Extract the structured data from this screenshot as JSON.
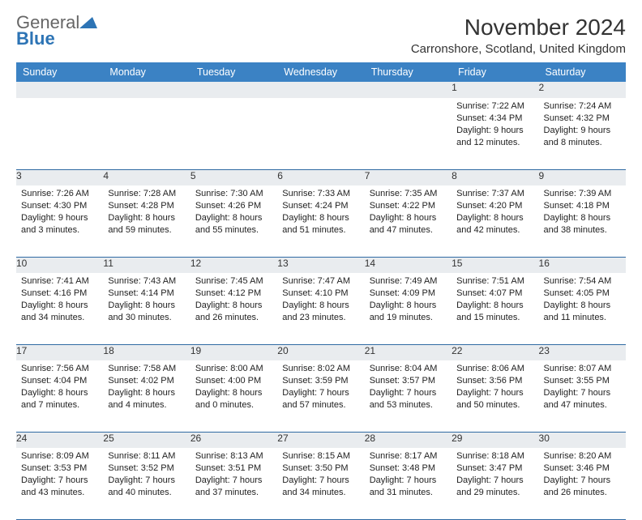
{
  "brand": {
    "name1": "General",
    "name2": "Blue",
    "tri_color": "#2d74b5"
  },
  "title": "November 2024",
  "location": "Carronshore, Scotland, United Kingdom",
  "header_bg": "#3b82c4",
  "daynum_bg": "#e9ecef",
  "rule_color": "#2f6aa3",
  "weekdays": [
    "Sunday",
    "Monday",
    "Tuesday",
    "Wednesday",
    "Thursday",
    "Friday",
    "Saturday"
  ],
  "weeks": [
    [
      null,
      null,
      null,
      null,
      null,
      {
        "n": "1",
        "sr": "Sunrise: 7:22 AM",
        "ss": "Sunset: 4:34 PM",
        "d1": "Daylight: 9 hours",
        "d2": "and 12 minutes."
      },
      {
        "n": "2",
        "sr": "Sunrise: 7:24 AM",
        "ss": "Sunset: 4:32 PM",
        "d1": "Daylight: 9 hours",
        "d2": "and 8 minutes."
      }
    ],
    [
      {
        "n": "3",
        "sr": "Sunrise: 7:26 AM",
        "ss": "Sunset: 4:30 PM",
        "d1": "Daylight: 9 hours",
        "d2": "and 3 minutes."
      },
      {
        "n": "4",
        "sr": "Sunrise: 7:28 AM",
        "ss": "Sunset: 4:28 PM",
        "d1": "Daylight: 8 hours",
        "d2": "and 59 minutes."
      },
      {
        "n": "5",
        "sr": "Sunrise: 7:30 AM",
        "ss": "Sunset: 4:26 PM",
        "d1": "Daylight: 8 hours",
        "d2": "and 55 minutes."
      },
      {
        "n": "6",
        "sr": "Sunrise: 7:33 AM",
        "ss": "Sunset: 4:24 PM",
        "d1": "Daylight: 8 hours",
        "d2": "and 51 minutes."
      },
      {
        "n": "7",
        "sr": "Sunrise: 7:35 AM",
        "ss": "Sunset: 4:22 PM",
        "d1": "Daylight: 8 hours",
        "d2": "and 47 minutes."
      },
      {
        "n": "8",
        "sr": "Sunrise: 7:37 AM",
        "ss": "Sunset: 4:20 PM",
        "d1": "Daylight: 8 hours",
        "d2": "and 42 minutes."
      },
      {
        "n": "9",
        "sr": "Sunrise: 7:39 AM",
        "ss": "Sunset: 4:18 PM",
        "d1": "Daylight: 8 hours",
        "d2": "and 38 minutes."
      }
    ],
    [
      {
        "n": "10",
        "sr": "Sunrise: 7:41 AM",
        "ss": "Sunset: 4:16 PM",
        "d1": "Daylight: 8 hours",
        "d2": "and 34 minutes."
      },
      {
        "n": "11",
        "sr": "Sunrise: 7:43 AM",
        "ss": "Sunset: 4:14 PM",
        "d1": "Daylight: 8 hours",
        "d2": "and 30 minutes."
      },
      {
        "n": "12",
        "sr": "Sunrise: 7:45 AM",
        "ss": "Sunset: 4:12 PM",
        "d1": "Daylight: 8 hours",
        "d2": "and 26 minutes."
      },
      {
        "n": "13",
        "sr": "Sunrise: 7:47 AM",
        "ss": "Sunset: 4:10 PM",
        "d1": "Daylight: 8 hours",
        "d2": "and 23 minutes."
      },
      {
        "n": "14",
        "sr": "Sunrise: 7:49 AM",
        "ss": "Sunset: 4:09 PM",
        "d1": "Daylight: 8 hours",
        "d2": "and 19 minutes."
      },
      {
        "n": "15",
        "sr": "Sunrise: 7:51 AM",
        "ss": "Sunset: 4:07 PM",
        "d1": "Daylight: 8 hours",
        "d2": "and 15 minutes."
      },
      {
        "n": "16",
        "sr": "Sunrise: 7:54 AM",
        "ss": "Sunset: 4:05 PM",
        "d1": "Daylight: 8 hours",
        "d2": "and 11 minutes."
      }
    ],
    [
      {
        "n": "17",
        "sr": "Sunrise: 7:56 AM",
        "ss": "Sunset: 4:04 PM",
        "d1": "Daylight: 8 hours",
        "d2": "and 7 minutes."
      },
      {
        "n": "18",
        "sr": "Sunrise: 7:58 AM",
        "ss": "Sunset: 4:02 PM",
        "d1": "Daylight: 8 hours",
        "d2": "and 4 minutes."
      },
      {
        "n": "19",
        "sr": "Sunrise: 8:00 AM",
        "ss": "Sunset: 4:00 PM",
        "d1": "Daylight: 8 hours",
        "d2": "and 0 minutes."
      },
      {
        "n": "20",
        "sr": "Sunrise: 8:02 AM",
        "ss": "Sunset: 3:59 PM",
        "d1": "Daylight: 7 hours",
        "d2": "and 57 minutes."
      },
      {
        "n": "21",
        "sr": "Sunrise: 8:04 AM",
        "ss": "Sunset: 3:57 PM",
        "d1": "Daylight: 7 hours",
        "d2": "and 53 minutes."
      },
      {
        "n": "22",
        "sr": "Sunrise: 8:06 AM",
        "ss": "Sunset: 3:56 PM",
        "d1": "Daylight: 7 hours",
        "d2": "and 50 minutes."
      },
      {
        "n": "23",
        "sr": "Sunrise: 8:07 AM",
        "ss": "Sunset: 3:55 PM",
        "d1": "Daylight: 7 hours",
        "d2": "and 47 minutes."
      }
    ],
    [
      {
        "n": "24",
        "sr": "Sunrise: 8:09 AM",
        "ss": "Sunset: 3:53 PM",
        "d1": "Daylight: 7 hours",
        "d2": "and 43 minutes."
      },
      {
        "n": "25",
        "sr": "Sunrise: 8:11 AM",
        "ss": "Sunset: 3:52 PM",
        "d1": "Daylight: 7 hours",
        "d2": "and 40 minutes."
      },
      {
        "n": "26",
        "sr": "Sunrise: 8:13 AM",
        "ss": "Sunset: 3:51 PM",
        "d1": "Daylight: 7 hours",
        "d2": "and 37 minutes."
      },
      {
        "n": "27",
        "sr": "Sunrise: 8:15 AM",
        "ss": "Sunset: 3:50 PM",
        "d1": "Daylight: 7 hours",
        "d2": "and 34 minutes."
      },
      {
        "n": "28",
        "sr": "Sunrise: 8:17 AM",
        "ss": "Sunset: 3:48 PM",
        "d1": "Daylight: 7 hours",
        "d2": "and 31 minutes."
      },
      {
        "n": "29",
        "sr": "Sunrise: 8:18 AM",
        "ss": "Sunset: 3:47 PM",
        "d1": "Daylight: 7 hours",
        "d2": "and 29 minutes."
      },
      {
        "n": "30",
        "sr": "Sunrise: 8:20 AM",
        "ss": "Sunset: 3:46 PM",
        "d1": "Daylight: 7 hours",
        "d2": "and 26 minutes."
      }
    ]
  ]
}
